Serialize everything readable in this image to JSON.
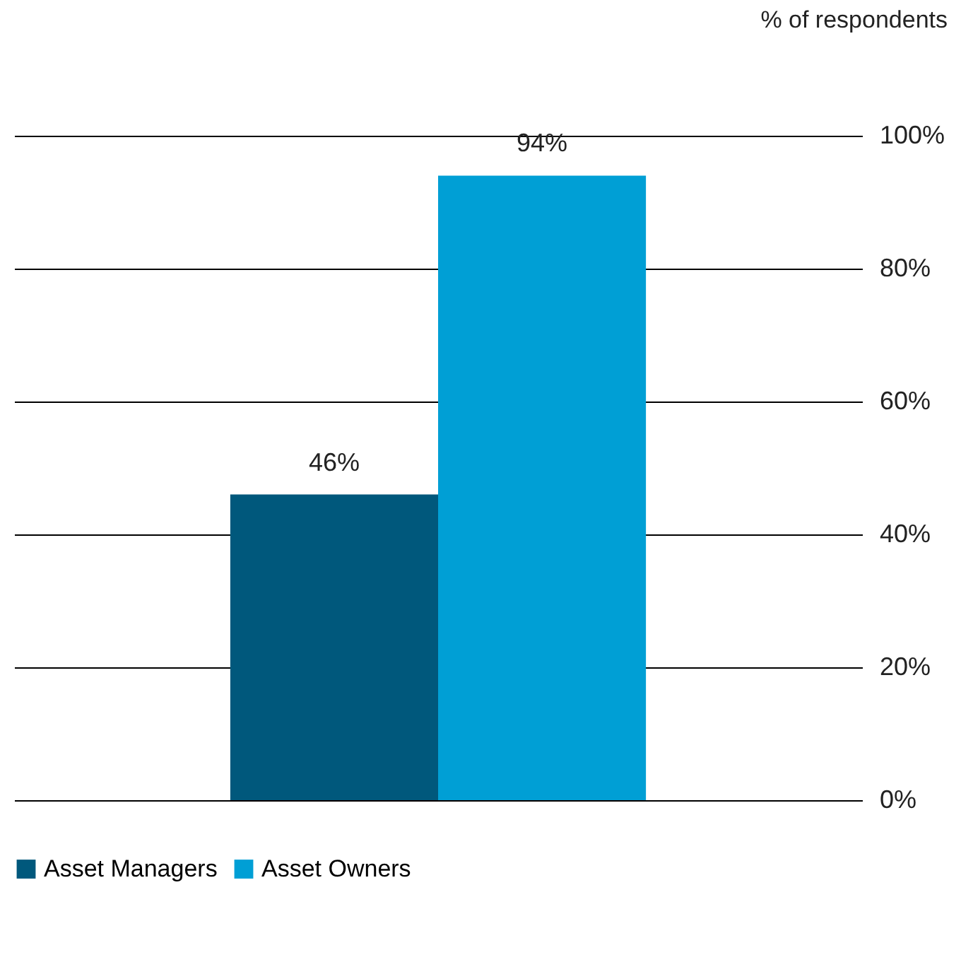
{
  "chart_data": {
    "type": "bar",
    "ylabel": "% of respondents",
    "categories": [
      null
    ],
    "series": [
      {
        "name": "Asset Managers",
        "color": "#00587c",
        "values": [
          46
        ],
        "value_labels": [
          "46%"
        ]
      },
      {
        "name": "Asset Owners",
        "color": "#009fd5",
        "values": [
          94
        ],
        "value_labels": [
          "94%"
        ]
      }
    ],
    "ylim": [
      0,
      100
    ],
    "yticks": [
      {
        "value": 0,
        "label": "0%"
      },
      {
        "value": 20,
        "label": "20%"
      },
      {
        "value": 40,
        "label": "40%"
      },
      {
        "value": 60,
        "label": "60%"
      },
      {
        "value": 80,
        "label": "80%"
      },
      {
        "value": 100,
        "label": "100%"
      }
    ],
    "grid": "y",
    "legend": "bottom left",
    "tick_labels": "y"
  }
}
